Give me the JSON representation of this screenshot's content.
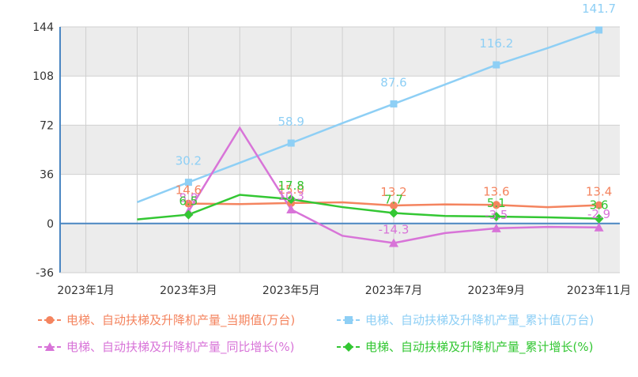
{
  "chart_data": {
    "type": "line",
    "x": [
      "2023年2月",
      "2023年3月",
      "2023年4月",
      "2023年5月",
      "2023年6月",
      "2023年7月",
      "2023年8月",
      "2023年9月",
      "2023年10月",
      "2023年11月"
    ],
    "xticks": [
      "2023年1月",
      "2023年3月",
      "2023年5月",
      "2023年7月",
      "2023年9月",
      "2023年11月"
    ],
    "yticks": [
      -36,
      0,
      36,
      72,
      108,
      144
    ],
    "ylim": [
      -36,
      144
    ],
    "grid": true,
    "legend_position": "bottom",
    "series": [
      {
        "name": "电梯、自动扶梯及升降机产量_当期值(万台)",
        "color": "#f4845f",
        "marker": "circle",
        "values": [
          null,
          14.6,
          14.2,
          15.0,
          15.5,
          13.2,
          14.0,
          13.6,
          12.0,
          13.4
        ],
        "labels": {
          "1": "14.6",
          "3": "15.0",
          "5": "13.2",
          "7": "13.6",
          "9": "13.4"
        }
      },
      {
        "name": "电梯、自动扶梯及升降机产量_累计值(万台)",
        "color": "#8ecff5",
        "marker": "square",
        "values": [
          15.6,
          30.2,
          44.5,
          58.9,
          73.5,
          87.6,
          101.8,
          116.2,
          128.5,
          141.7
        ],
        "labels": {
          "1": "30.2",
          "3": "58.9",
          "5": "87.6",
          "7": "116.2",
          "9": "141.7"
        }
      },
      {
        "name": "电梯、自动扶梯及升降机产量_同比增长(%)",
        "color": "#d874d8",
        "marker": "triangle",
        "values": [
          null,
          8.8,
          70.0,
          10.3,
          -9.0,
          -14.3,
          -7.0,
          -3.5,
          -2.5,
          -2.9
        ],
        "labels": {
          "1": "8.8",
          "3": "10.3",
          "5": "-14.3",
          "7": "-3.5",
          "9": "-2.9"
        }
      },
      {
        "name": "电梯、自动扶梯及升降机产量_累计增长(%)",
        "color": "#33c733",
        "marker": "diamond",
        "values": [
          3.0,
          6.5,
          21.0,
          17.8,
          12.0,
          7.7,
          5.5,
          5.1,
          4.5,
          3.6
        ],
        "labels": {
          "1": "6.5",
          "3": "17.8",
          "5": "7.7",
          "7": "5.1",
          "9": "3.6"
        }
      }
    ]
  }
}
